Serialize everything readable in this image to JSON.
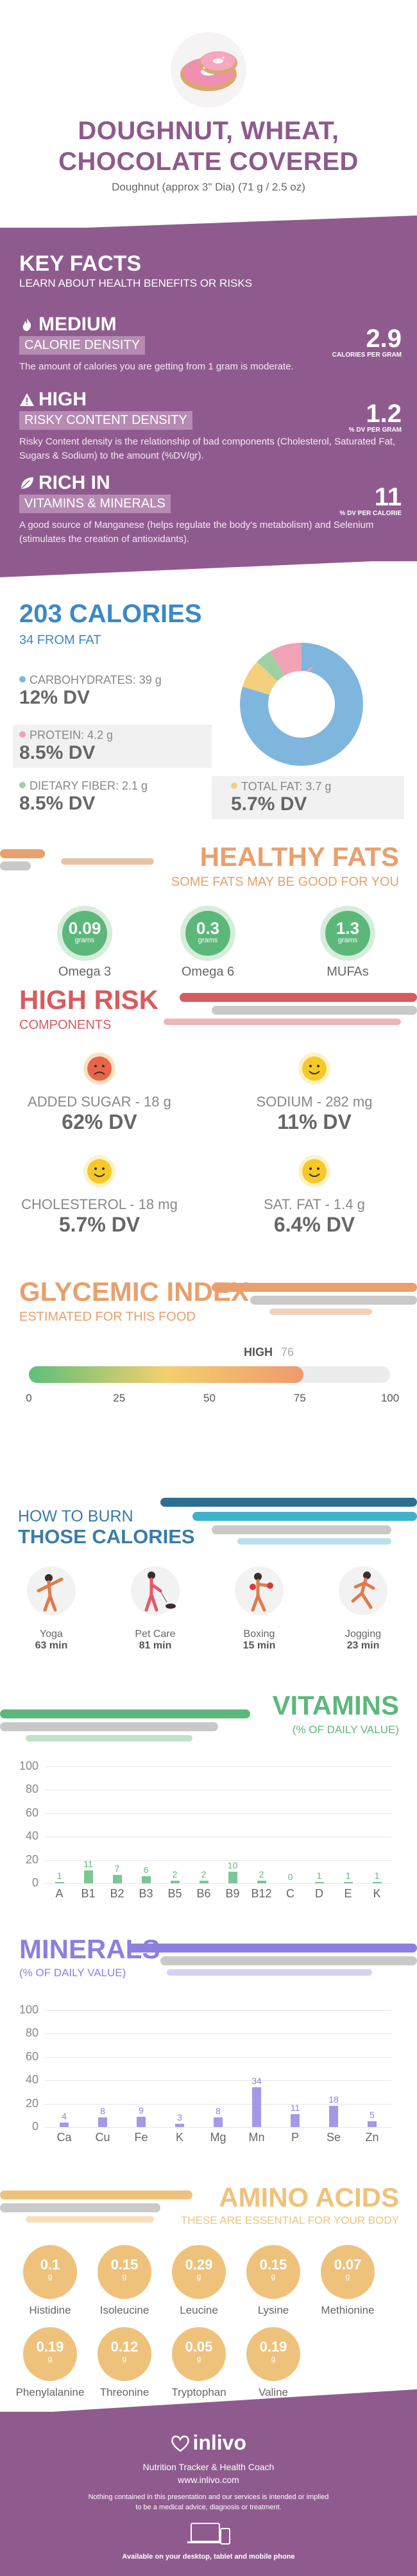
{
  "header": {
    "title_line1": "DOUGHNUT, WHEAT,",
    "title_line2": "CHOCOLATE COVERED",
    "subtitle": "Doughnut (approx 3\" Dia) (71 g / 2.5 oz)"
  },
  "key_facts": {
    "title": "KEY FACTS",
    "subtitle": "LEARN ABOUT HEALTH BENEFITS OR RISKS",
    "items": [
      {
        "level": "MEDIUM",
        "category": "CALORIE DENSITY",
        "value": "2.9",
        "unit": "CALORIES PER GRAM",
        "description": "The amount of calories you are getting from 1 gram is moderate.",
        "icon": "flame-icon"
      },
      {
        "level": "HIGH",
        "category": "RISKY CONTENT DENSITY",
        "value": "1.2",
        "unit": "% DV PER GRAM",
        "description": "Risky Content density is the relationship of bad components (Cholesterol, Saturated Fat, Sugars & Sodium) to the amount (%DV/gr).",
        "icon": "warning-icon"
      },
      {
        "level": "RICH  IN",
        "category": "VITAMINS & MINERALS",
        "value": "11",
        "unit": "% DV PER CALORIE",
        "description": "A good source of Manganese (helps regulate the body's metabolism) and Selenium (stimulates the creation of antioxidants).",
        "icon": "leaf-icon"
      }
    ]
  },
  "calories": {
    "title": "203 CALORIES",
    "from_fat": "34 FROM FAT",
    "nutrients": [
      {
        "label": "CARBOHYDRATES: 39 g",
        "dv": "12% DV",
        "color": "#7fb6de",
        "grams": 39
      },
      {
        "label": "PROTEIN: 4.2 g",
        "dv": "8.5% DV",
        "color": "#f0a3b5",
        "grams": 4.2
      },
      {
        "label": "DIETARY FIBER: 2.1 g",
        "dv": "8.5% DV",
        "color": "#9ed0a3",
        "grams": 2.1
      },
      {
        "label": "TOTAL FAT: 3.7 g",
        "dv": "5.7% DV",
        "color": "#f4cf7e",
        "grams": 3.7
      }
    ]
  },
  "healthy_fats": {
    "title": "HEALTHY FATS",
    "subtitle": "SOME FATS MAY BE GOOD FOR YOU",
    "items": [
      {
        "value": "0.09",
        "unit": "grams",
        "label": "Omega 3"
      },
      {
        "value": "0.3",
        "unit": "grams",
        "label": "Omega 6"
      },
      {
        "value": "1.3",
        "unit": "grams",
        "label": "MUFAs"
      }
    ]
  },
  "high_risk": {
    "title": "HIGH RISK",
    "subtitle": "COMPONENTS",
    "items": [
      {
        "label": "ADDED SUGAR - 18 g",
        "dv": "62% DV",
        "face": "sad-face-icon"
      },
      {
        "label": "SODIUM - 282 mg",
        "dv": "11% DV",
        "face": "happy-face-icon"
      },
      {
        "label": "CHOLESTEROL - 18 mg",
        "dv": "5.7% DV",
        "face": "happy-face-icon"
      },
      {
        "label": "SAT. FAT - 1.4 g",
        "dv": "6.4% DV",
        "face": "happy-face-icon"
      }
    ]
  },
  "glycemic": {
    "title": "GLYCEMIC INDEX",
    "subtitle": "ESTIMATED FOR THIS FOOD",
    "level": "HIGH",
    "value": "76",
    "value_num": 76,
    "ticks": [
      "0",
      "25",
      "50",
      "75",
      "100"
    ]
  },
  "burn": {
    "title_line1": "HOW TO BURN",
    "title_line2": "THOSE CALORIES",
    "items": [
      {
        "label": "Yoga",
        "minutes": "63 min",
        "icon": "yoga-icon"
      },
      {
        "label": "Pet Care",
        "minutes": "81 min",
        "icon": "dog-walking-icon"
      },
      {
        "label": "Boxing",
        "minutes": "15 min",
        "icon": "boxing-icon"
      },
      {
        "label": "Jogging",
        "minutes": "23 min",
        "icon": "running-icon"
      }
    ]
  },
  "vitamins": {
    "title": "VITAMINS",
    "subtitle": "(% OF DAILY VALUE)"
  },
  "minerals": {
    "title": "MINERALS",
    "subtitle": "(% OF DAILY VALUE)"
  },
  "chart_data": [
    {
      "type": "bar",
      "title": "VITAMINS",
      "categories": [
        "A",
        "B1",
        "B2",
        "B3",
        "B5",
        "B6",
        "B9",
        "B12",
        "C",
        "D",
        "E",
        "K"
      ],
      "values": [
        1,
        11,
        7,
        6,
        2,
        2,
        10,
        2,
        0,
        1,
        1,
        1
      ],
      "ylim": [
        0,
        100
      ],
      "yticks": [
        "100",
        "80",
        "60",
        "40",
        "20",
        "0"
      ],
      "color": "#5cb87a"
    },
    {
      "type": "bar",
      "title": "MINERALS",
      "categories": [
        "Ca",
        "Cu",
        "Fe",
        "K",
        "Mg",
        "Mn",
        "P",
        "Se",
        "Zn"
      ],
      "values": [
        4,
        8,
        9,
        3,
        8,
        34,
        11,
        18,
        5
      ],
      "ylim": [
        0,
        100
      ],
      "yticks": [
        "100",
        "80",
        "60",
        "40",
        "20",
        "0"
      ],
      "color": "#8c7fe0"
    }
  ],
  "amino_acids": {
    "title": "AMINO ACIDS",
    "subtitle": "THESE ARE ESSENTIAL FOR YOUR BODY",
    "unit": "g",
    "items": [
      {
        "value": "0.1",
        "label": "Histidine"
      },
      {
        "value": "0.15",
        "label": "Isoleucine"
      },
      {
        "value": "0.29",
        "label": "Leucine"
      },
      {
        "value": "0.15",
        "label": "Lysine"
      },
      {
        "value": "0.07",
        "label": "Methionine"
      },
      {
        "value": "0.19",
        "label": "Phenylalanine"
      },
      {
        "value": "0.12",
        "label": "Threonine"
      },
      {
        "value": "0.05",
        "label": "Tryptophan"
      },
      {
        "value": "0.19",
        "label": "Valine"
      }
    ]
  },
  "footer": {
    "brand": "inlivo",
    "tagline": "Nutrition Tracker & Health Coach",
    "url": "www.inlivo.com",
    "disclaimer1": "Nothing contained in this presentation and our services is intended or implied",
    "disclaimer2": "to be a medical advice, diagnosis or treatment.",
    "devices": "Available on your desktop, tablet and mobile phone"
  }
}
